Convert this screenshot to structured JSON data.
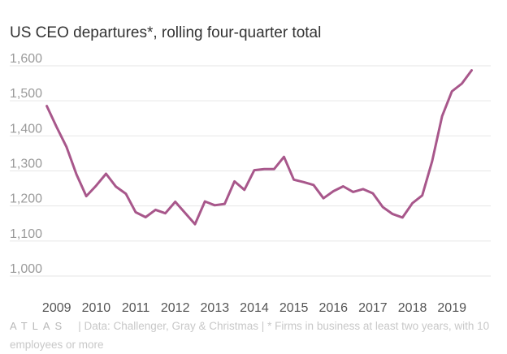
{
  "title": "US CEO departures*, rolling four-quarter total",
  "footer": {
    "logo": "ATLAS",
    "source": "| Data: Challenger, Gray & Christmas | * Firms in business at least two years, with 10 employees or more"
  },
  "colors": {
    "line": "#a8578b",
    "grid": "#e6e6e6"
  },
  "chart_data": {
    "type": "line",
    "title": "US CEO departures*, rolling four-quarter total",
    "xlabel": "",
    "ylabel": "",
    "ylim": [
      1000,
      1600
    ],
    "yticks": [
      "1,000",
      "1,100",
      "1,200",
      "1,300",
      "1,400",
      "1,500",
      "1,600"
    ],
    "xticks": [
      "2009",
      "2010",
      "2011",
      "2012",
      "2013",
      "2014",
      "2015",
      "2016",
      "2017",
      "2018",
      "2019"
    ],
    "xlim": [
      2008.8,
      2019.9
    ],
    "grid": true,
    "series": [
      {
        "x": [
          2008.75,
          2009.0,
          2009.25,
          2009.5,
          2009.75,
          2010.0,
          2010.25,
          2010.5,
          2010.75,
          2011.0,
          2011.25,
          2011.5,
          2011.75,
          2012.0,
          2012.25,
          2012.5,
          2012.75,
          2013.0,
          2013.25,
          2013.5,
          2013.75,
          2014.0,
          2014.25,
          2014.5,
          2014.75,
          2015.0,
          2015.25,
          2015.5,
          2015.75,
          2016.0,
          2016.25,
          2016.5,
          2016.75,
          2017.0,
          2017.25,
          2017.5,
          2017.75,
          2018.0,
          2018.25,
          2018.5,
          2018.75,
          2019.0,
          2019.25,
          2019.5
        ],
        "values": [
          1485,
          1425,
          1368,
          1290,
          1228,
          1258,
          1292,
          1255,
          1235,
          1182,
          1168,
          1189,
          1179,
          1212,
          1180,
          1148,
          1213,
          1202,
          1206,
          1270,
          1246,
          1302,
          1305,
          1305,
          1340,
          1275,
          1268,
          1260,
          1222,
          1242,
          1256,
          1240,
          1248,
          1236,
          1197,
          1177,
          1167,
          1208,
          1230,
          1328,
          1456,
          1527,
          1549,
          1587
        ]
      }
    ]
  }
}
